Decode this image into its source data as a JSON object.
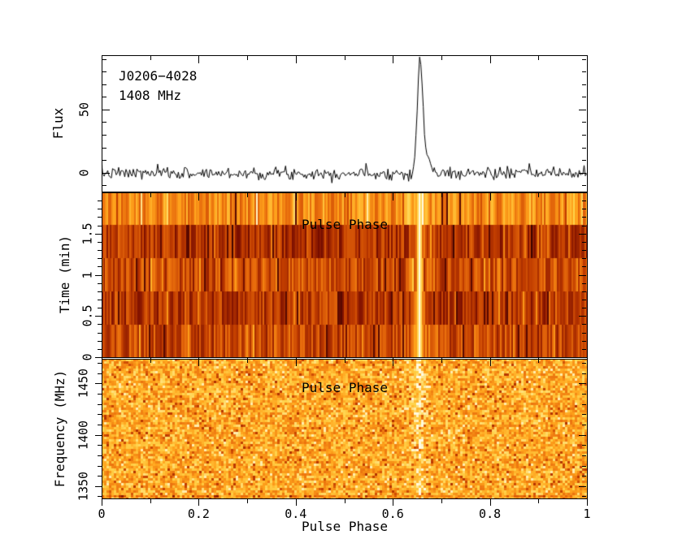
{
  "figure": {
    "source_name": "J0206−4028",
    "observing_frequency": "1408 MHz"
  },
  "axes": {
    "x": {
      "label": "Pulse Phase",
      "range": [
        0,
        1
      ],
      "minor_step": 0.1,
      "ticks": [
        {
          "v": 0,
          "label": "0"
        },
        {
          "v": 0.2,
          "label": "0.2"
        },
        {
          "v": 0.4,
          "label": "0.4"
        },
        {
          "v": 0.6,
          "label": "0.6"
        },
        {
          "v": 0.8,
          "label": "0.8"
        },
        {
          "v": 1,
          "label": "1"
        }
      ]
    },
    "flux": {
      "label": "Flux",
      "range": [
        -15,
        93
      ],
      "minor_step": 10,
      "ticks": [
        {
          "v": 0,
          "label": "0"
        },
        {
          "v": 50,
          "label": "50"
        }
      ]
    },
    "time": {
      "label": "Time (min)",
      "range": [
        0,
        2
      ],
      "minor_step": 0.1,
      "ticks": [
        {
          "v": 0,
          "label": "0"
        },
        {
          "v": 0.5,
          "label": "0.5"
        },
        {
          "v": 1,
          "label": "1"
        },
        {
          "v": 1.5,
          "label": "1.5"
        }
      ]
    },
    "freq": {
      "label": "Frequency (MHz)",
      "range": [
        1338,
        1474
      ],
      "minor_step": 10,
      "ticks": [
        {
          "v": 1350,
          "label": "1350"
        },
        {
          "v": 1400,
          "label": "1400"
        },
        {
          "v": 1450,
          "label": "1450"
        }
      ]
    }
  },
  "overlays": {
    "middle_panel_xlabel": "Pulse Phase",
    "bottom_panel_xlabel": "Pulse Phase"
  },
  "chart_data": [
    {
      "panel": "pulse_profile",
      "type": "line",
      "title": "J0206−4028",
      "subtitle": "1408 MHz",
      "xlabel": "Pulse Phase",
      "ylabel": "Flux",
      "xlim": [
        0,
        1
      ],
      "ylim": [
        -15,
        93
      ],
      "xticks": [
        0,
        0.2,
        0.4,
        0.6,
        0.8,
        1
      ],
      "yticks": [
        0,
        50
      ],
      "grid": false,
      "line_color": "#000000",
      "n_bins": 400,
      "baseline_flux": 0,
      "noise_sigma": 2.4,
      "pulse_components": [
        {
          "shape": "gaussian",
          "center_phase": 0.655,
          "sigma_phase": 0.0055,
          "amplitude": 88
        },
        {
          "shape": "gaussian",
          "center_phase": 0.669,
          "sigma_phase": 0.0075,
          "amplitude": 12
        }
      ]
    },
    {
      "panel": "time_vs_phase",
      "type": "heatmap",
      "xlabel": "Pulse Phase",
      "ylabel": "Time (min)",
      "xlim": [
        0,
        1
      ],
      "ylim": [
        0,
        2
      ],
      "yticks": [
        0,
        0.5,
        1,
        1.5
      ],
      "n_subintegrations": 5,
      "subintegration_minutes": 0.4,
      "subint_mean_levels_top_to_bottom": [
        0.62,
        0.3,
        0.4,
        0.32,
        0.38
      ],
      "column_noise_amplitude": 0.17,
      "pulse_phase": 0.655,
      "pulse_level": 1.0,
      "colormap": "heat"
    },
    {
      "panel": "frequency_vs_phase",
      "type": "heatmap",
      "xlabel": "Pulse Phase",
      "ylabel": "Frequency (MHz)",
      "xlim": [
        0,
        1
      ],
      "ylim": [
        1338,
        1474
      ],
      "yticks": [
        1350,
        1400,
        1450
      ],
      "mean_level": 0.72,
      "noise_amplitude": 0.18,
      "dark_pixel_fraction": 0.05,
      "pulse_phase": 0.655,
      "pulse_boost": 0.13,
      "colormap": "heat"
    }
  ],
  "colors": {
    "background": "#ffffff",
    "axis": "#000000",
    "text": "#000000",
    "profile_line": "#000000",
    "heat_stops": [
      "#2e0000",
      "#7e1000",
      "#c03c00",
      "#e86c0c",
      "#ffa31c",
      "#ffd34a",
      "#fffae0"
    ]
  },
  "seed": 7
}
